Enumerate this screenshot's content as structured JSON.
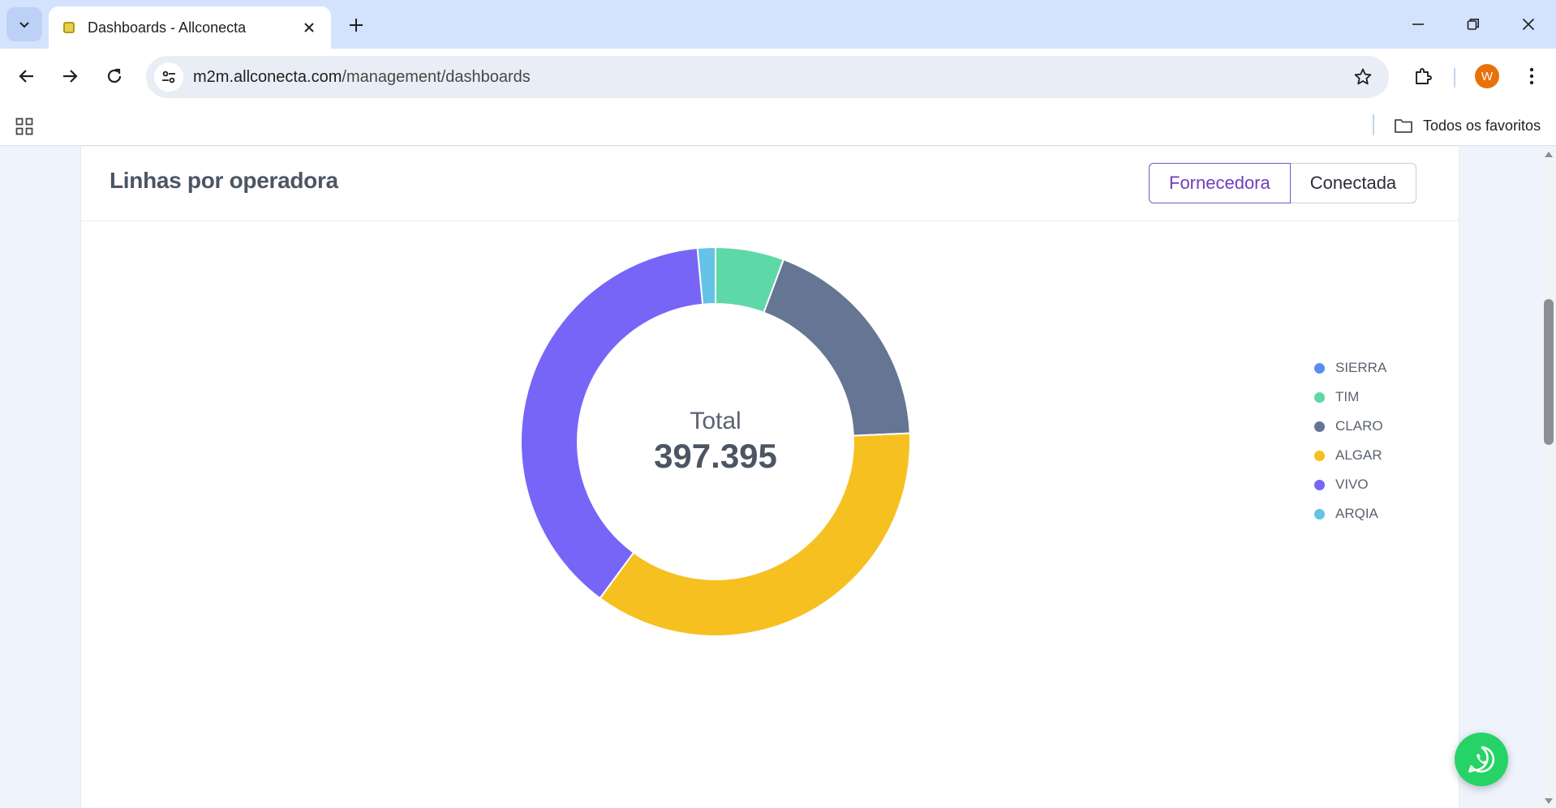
{
  "browser": {
    "tab_title": "Dashboards - Allconecta",
    "url_host": "m2m.allconecta.com",
    "url_path": "/management/dashboards",
    "avatar_letter": "W",
    "bookmarks_label": "Todos os favoritos"
  },
  "page": {
    "card_title": "Linhas por operadora",
    "toggle": {
      "active_label": "Fornecedora",
      "other_label": "Conectada"
    }
  },
  "chart_data": {
    "type": "pie",
    "center_label": "Total",
    "center_value": "397.395",
    "legend_position": "right",
    "categories": [
      "SIERRA",
      "TIM",
      "CLARO",
      "ALGAR",
      "VIVO",
      "ARQIA"
    ],
    "values": [
      0,
      22600,
      74000,
      142300,
      152600,
      5895
    ],
    "colors": [
      "#5b8def",
      "#5fd8a8",
      "#657594",
      "#f6c020",
      "#7765f8",
      "#64c3e6"
    ]
  }
}
